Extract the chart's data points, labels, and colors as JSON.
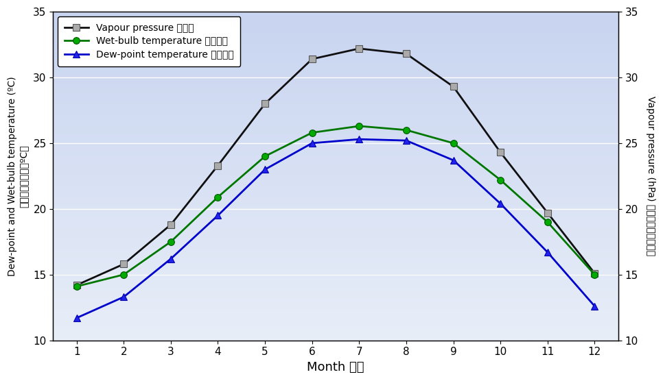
{
  "months": [
    1,
    2,
    3,
    4,
    5,
    6,
    7,
    8,
    9,
    10,
    11,
    12
  ],
  "vapour_pressure": [
    14.2,
    15.8,
    18.8,
    23.3,
    28.0,
    31.4,
    32.2,
    31.8,
    29.3,
    24.3,
    19.7,
    15.1
  ],
  "wet_bulb": [
    14.1,
    15.0,
    17.5,
    20.9,
    24.0,
    25.8,
    26.3,
    26.0,
    25.0,
    22.2,
    19.0,
    15.0
  ],
  "dew_point": [
    11.7,
    13.3,
    16.2,
    19.5,
    23.0,
    25.0,
    25.3,
    25.2,
    23.7,
    20.4,
    16.7,
    12.6
  ],
  "vapour_label": "Vapour pressure 水氣壓",
  "wet_bulb_label": "Wet-bulb temperature 濕球溫度",
  "dew_point_label": "Dew-point temperature 露點溫度",
  "xlabel": "Month 月份",
  "ylabel_left_en": "Dew-point and Wet-bulb temperature (ºC)",
  "ylabel_left_zh": "露點及濕球溫度（ºC）",
  "ylabel_right_en": "Vapour pressure (hPa)",
  "ylabel_right_zh": "水氣壓（百帕斯卡）",
  "ylim": [
    10,
    35
  ],
  "bg_color_top": "#c8d4f0",
  "bg_color_bottom": "#e8eef8",
  "vapour_line_color": "#101010",
  "vapour_marker_face": "#aaaaaa",
  "vapour_marker_edge": "#555555",
  "wet_bulb_color": "#007700",
  "dew_point_color": "#0000cc",
  "line_width": 2.0,
  "marker_size": 7,
  "grid_color": "#ffffff",
  "yticks": [
    10,
    15,
    20,
    25,
    30,
    35
  ]
}
